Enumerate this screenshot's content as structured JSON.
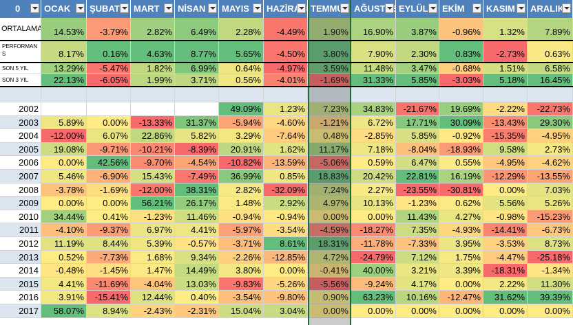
{
  "sheet": {
    "corner_label": "0",
    "months": [
      "OCAK",
      "ŞUBAT",
      "MART",
      "NİSAN",
      "MAYIS",
      "HAZİRAN",
      "TEMMUZ",
      "AĞUSTOS",
      "EYLÜL",
      "EKİM",
      "KASIM",
      "ARALIK"
    ],
    "summary_rows": [
      {
        "label": "ORTALAMA",
        "values": [
          "14.53%",
          "-3.79%",
          "2.82%",
          "6.49%",
          "2.28%",
          "-4.49%",
          "1.90%",
          "16.90%",
          "3.87%",
          "-0.96%",
          "1.32%",
          "7.89%"
        ]
      },
      {
        "label": "PERFORMANS",
        "values": [
          "8.17%",
          "0.16%",
          "4.63%",
          "8.77%",
          "5.65%",
          "-4.50%",
          "3.80%",
          "7.90%",
          "2.30%",
          "0.83%",
          "-2.73%",
          "0.63%"
        ]
      },
      {
        "label": "SON 5 YIL",
        "values": [
          "13.29%",
          "-5.47%",
          "1.82%",
          "6.99%",
          "0.64%",
          "-4.97%",
          "3.59%",
          "11.48%",
          "3.47%",
          "-0.68%",
          "1.51%",
          "6.58%"
        ]
      },
      {
        "label": "SON 3 YIL",
        "values": [
          "22.13%",
          "-6.05%",
          "1.99%",
          "3.71%",
          "0.56%",
          "-4.01%",
          "-1.69%",
          "31.33%",
          "5.85%",
          "-3.03%",
          "5.18%",
          "16.45%"
        ]
      }
    ],
    "year_rows": [
      {
        "label": "2002",
        "values": [
          "",
          "",
          "",
          "",
          "49.09%",
          "1.23%",
          "7.23%",
          "34.83%",
          "-21.67%",
          "19.69%",
          "-2.22%",
          "-22.73%"
        ]
      },
      {
        "label": "2003",
        "values": [
          "5.89%",
          "0.00%",
          "-13.33%",
          "31.37%",
          "-5.94%",
          "-4.60%",
          "-1.21%",
          "6.72%",
          "17.71%",
          "30.09%",
          "-13.43%",
          "29.30%"
        ]
      },
      {
        "label": "2004",
        "values": [
          "-12.00%",
          "6.07%",
          "22.86%",
          "5.82%",
          "3.29%",
          "-7.64%",
          "0.48%",
          "-2.85%",
          "5.85%",
          "-0.92%",
          "-15.35%",
          "-4.95%"
        ]
      },
      {
        "label": "2005",
        "values": [
          "19.08%",
          "-9.71%",
          "-10.21%",
          "-8.39%",
          "20.91%",
          "1.62%",
          "11.17%",
          "7.18%",
          "-8.04%",
          "-18.93%",
          "9.58%",
          "2.73%"
        ]
      },
      {
        "label": "2006",
        "values": [
          "0.00%",
          "42.56%",
          "-9.70%",
          "-4.54%",
          "-10.82%",
          "-13.59%",
          "-5.06%",
          "0.59%",
          "6.47%",
          "0.55%",
          "-4.95%",
          "-4.62%"
        ]
      },
      {
        "label": "2007",
        "values": [
          "5.46%",
          "-6.90%",
          "15.43%",
          "-7.49%",
          "36.99%",
          "0.85%",
          "18.83%",
          "20.42%",
          "22.81%",
          "16.19%",
          "-12.29%",
          "-13.55%"
        ]
      },
      {
        "label": "2008",
        "values": [
          "-3.78%",
          "-1.69%",
          "-12.00%",
          "38.31%",
          "2.82%",
          "-32.09%",
          "7.24%",
          "2.27%",
          "-23.55%",
          "-30.81%",
          "0.00%",
          "7.03%"
        ]
      },
      {
        "label": "2009",
        "values": [
          "0.00%",
          "0.00%",
          "56.21%",
          "26.17%",
          "1.48%",
          "2.92%",
          "4.97%",
          "10.13%",
          "-1.23%",
          "0.62%",
          "5.56%",
          "5.26%"
        ]
      },
      {
        "label": "2010",
        "values": [
          "34.44%",
          "0.41%",
          "-1.23%",
          "11.46%",
          "-0.94%",
          "-0.94%",
          "0.00%",
          "0.00%",
          "11.43%",
          "4.27%",
          "-0.98%",
          "-15.23%"
        ]
      },
      {
        "label": "2011",
        "values": [
          "-4.10%",
          "-9.37%",
          "6.97%",
          "4.41%",
          "-5.97%",
          "-3.54%",
          "-4.59%",
          "-18.27%",
          "7.35%",
          "-4.93%",
          "-14.41%",
          "-6.73%"
        ]
      },
      {
        "label": "2012",
        "values": [
          "11.19%",
          "8.44%",
          "5.39%",
          "-0.57%",
          "-3.71%",
          "8.61%",
          "18.31%",
          "-11.78%",
          "-7.33%",
          "3.95%",
          "-3.53%",
          "8.73%"
        ]
      },
      {
        "label": "2013",
        "values": [
          "0.52%",
          "-7.73%",
          "1.68%",
          "9.34%",
          "-2.26%",
          "-12.85%",
          "4.72%",
          "-24.79%",
          "7.12%",
          "1.75%",
          "-4.47%",
          "-25.18%"
        ]
      },
      {
        "label": "2014",
        "values": [
          "-0.48%",
          "-1.45%",
          "1.47%",
          "14.49%",
          "3.80%",
          "0.00%",
          "-0.41%",
          "40.00%",
          "3.21%",
          "3.39%",
          "-18.31%",
          "-1.34%"
        ]
      },
      {
        "label": "2015",
        "values": [
          "4.41%",
          "-11.69%",
          "-4.04%",
          "13.03%",
          "-9.83%",
          "-5.26%",
          "-5.56%",
          "-9.24%",
          "4.17%",
          "0.00%",
          "2.22%",
          "11.30%"
        ]
      },
      {
        "label": "2016",
        "values": [
          "3.91%",
          "-15.41%",
          "12.44%",
          "0.40%",
          "-3.54%",
          "-9.80%",
          "0.90%",
          "63.23%",
          "10.16%",
          "-12.47%",
          "31.62%",
          "39.39%"
        ]
      },
      {
        "label": "2017",
        "values": [
          "58.07%",
          "8.94%",
          "-2.43%",
          "-2.31%",
          "15.04%",
          "3.04%",
          "0.00%",
          "0.00%",
          "0.00%",
          "0.00%",
          "0.00%",
          "0.00%"
        ]
      }
    ],
    "selected_column": "TEMMUZ",
    "colors": {
      "header_bg": "#4f81bd",
      "scale_negative": "#f8696b",
      "scale_mid": "#ffeb84",
      "scale_positive": "#63be7b",
      "blank_separator": "#dce6f1"
    }
  }
}
